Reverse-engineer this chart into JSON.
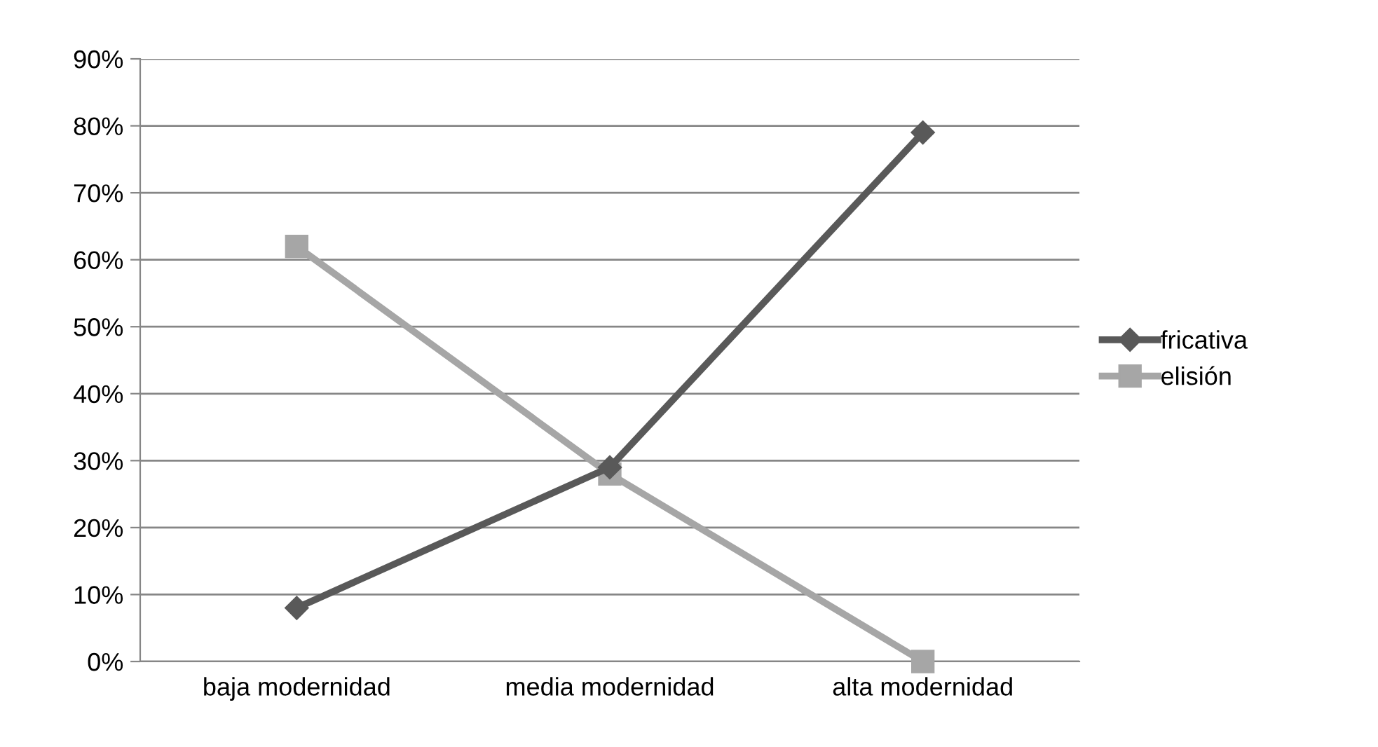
{
  "chart_data": {
    "type": "line",
    "categories": [
      "baja modernidad",
      "media modernidad",
      "alta modernidad"
    ],
    "series": [
      {
        "name": "fricativa",
        "color": "#595959",
        "values": [
          8,
          29,
          79
        ],
        "marker": "diamond"
      },
      {
        "name": "elisión",
        "color": "#a6a6a6",
        "values": [
          62,
          28,
          0
        ],
        "marker": "square"
      }
    ],
    "ylim": [
      0,
      90
    ],
    "yticks": [
      {
        "value": 0,
        "label": "0%"
      },
      {
        "value": 10,
        "label": "10%"
      },
      {
        "value": 20,
        "label": "20%"
      },
      {
        "value": 30,
        "label": "30%"
      },
      {
        "value": 40,
        "label": "40%"
      },
      {
        "value": 50,
        "label": "50%"
      },
      {
        "value": 60,
        "label": "60%"
      },
      {
        "value": 70,
        "label": "70%"
      },
      {
        "value": 80,
        "label": "80%"
      },
      {
        "value": 90,
        "label": "90%"
      }
    ],
    "grid": "y",
    "legend": "right",
    "line_style": "solid"
  }
}
